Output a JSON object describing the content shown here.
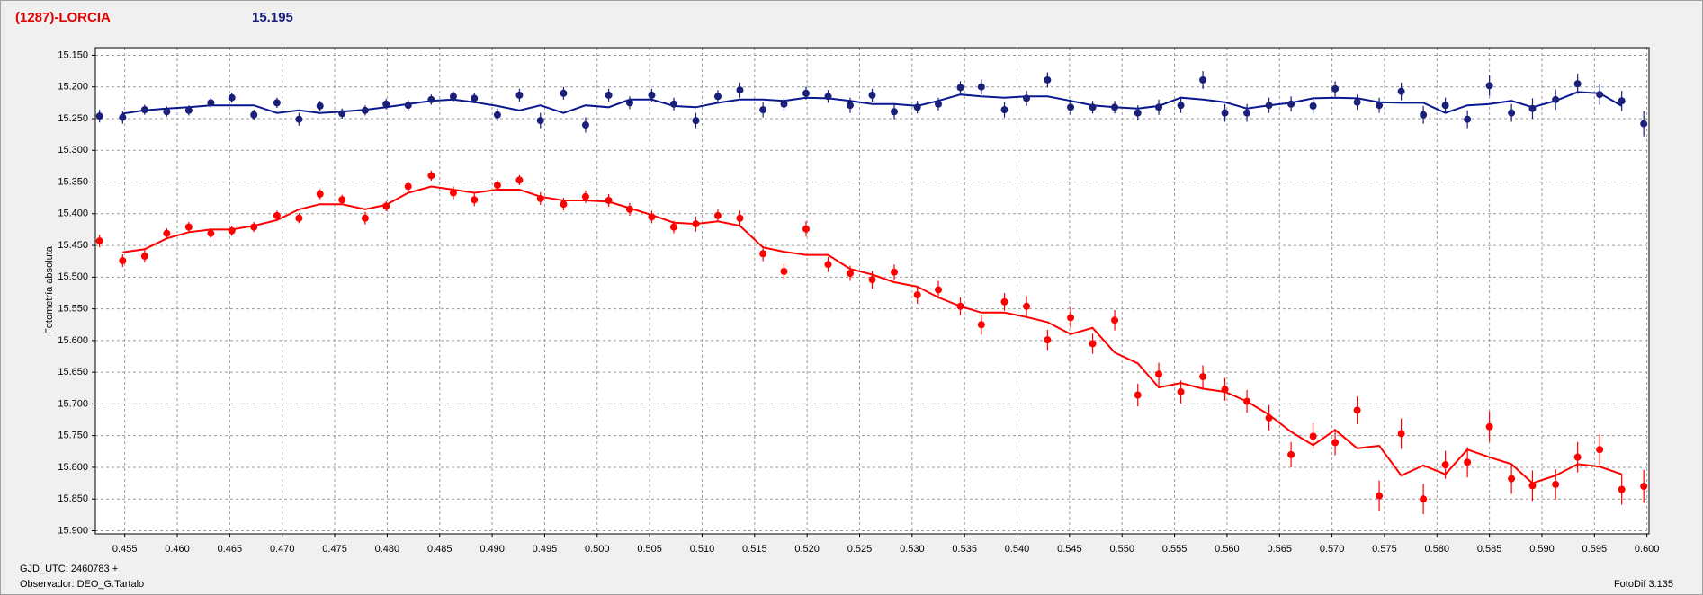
{
  "chart_data": {
    "type": "scatter",
    "title": "(1287)-LORCIA",
    "subtitle": "15.195",
    "y_label": "Fotometría absoluta",
    "footer": [
      "GJD_UTC: 2460783 +",
      "Observador: DEO_G.Tartalo"
    ],
    "software": "FotoDif 3.135",
    "grid": true,
    "xlim": [
      0.4522,
      0.6002
    ],
    "ylim": [
      15.905,
      15.138
    ],
    "xticks": [
      0.455,
      {
        "value": 0.46,
        "label": "0.460"
      },
      0.465,
      {
        "value": 0.47,
        "label": "0.470"
      },
      0.475,
      {
        "value": 0.48,
        "label": "0.480"
      },
      0.485,
      {
        "value": 0.49,
        "label": "0.490"
      },
      0.495,
      {
        "value": 0.5,
        "label": "0.500"
      },
      0.505,
      {
        "value": 0.51,
        "label": "0.510"
      },
      0.515,
      {
        "value": 0.52,
        "label": "0.520"
      },
      0.525,
      {
        "value": 0.53,
        "label": "0.530"
      },
      0.535,
      {
        "value": 0.54,
        "label": "0.540"
      },
      0.545,
      {
        "value": 0.55,
        "label": "0.550"
      },
      0.555,
      {
        "value": 0.56,
        "label": "0.560"
      },
      0.565,
      {
        "value": 0.57,
        "label": "0.570"
      },
      0.575,
      {
        "value": 0.58,
        "label": "0.580"
      },
      0.585,
      {
        "value": 0.59,
        "label": "0.590"
      },
      0.595,
      {
        "value": 0.6,
        "label": "0.600"
      }
    ],
    "yticks": [
      {
        "value": 15.15,
        "label": "15.150"
      },
      {
        "value": 15.2,
        "label": "15.200"
      },
      {
        "value": 15.25,
        "label": "15.250"
      },
      {
        "value": 15.3,
        "label": "15.300"
      },
      {
        "value": 15.35,
        "label": "15.350"
      },
      {
        "value": 15.4,
        "label": "15.400"
      },
      {
        "value": 15.45,
        "label": "15.450"
      },
      {
        "value": 15.5,
        "label": "15.500"
      },
      {
        "value": 15.55,
        "label": "15.550"
      },
      {
        "value": 15.6,
        "label": "15.600"
      },
      {
        "value": 15.65,
        "label": "15.650"
      },
      {
        "value": 15.7,
        "label": "15.700"
      },
      {
        "value": 15.75,
        "label": "15.750"
      },
      {
        "value": 15.8,
        "label": "15.800"
      },
      {
        "value": 15.85,
        "label": "15.850"
      },
      {
        "value": 15.9,
        "label": "15.900"
      }
    ],
    "x": [
      0.4526,
      0.4548,
      0.4569,
      0.459,
      0.4611,
      0.4632,
      0.4652,
      0.4673,
      0.4695,
      0.4716,
      0.4736,
      0.4757,
      0.4779,
      0.4799,
      0.482,
      0.4842,
      0.4863,
      0.4883,
      0.4905,
      0.4926,
      0.4946,
      0.4968,
      0.4989,
      0.5011,
      0.5031,
      0.5052,
      0.5073,
      0.5094,
      0.5115,
      0.5136,
      0.5158,
      0.5178,
      0.5199,
      0.522,
      0.5241,
      0.5262,
      0.5283,
      0.5305,
      0.5325,
      0.5346,
      0.5366,
      0.5388,
      0.5409,
      0.5429,
      0.5451,
      0.5472,
      0.5493,
      0.5515,
      0.5535,
      0.5556,
      0.5577,
      0.5598,
      0.5619,
      0.564,
      0.5661,
      0.5682,
      0.5703,
      0.5724,
      0.5745,
      0.5766,
      0.5787,
      0.5808,
      0.5829,
      0.585,
      0.5871,
      0.5891,
      0.5913,
      0.5934,
      0.5955,
      0.5976,
      0.5997
    ],
    "series": [
      {
        "color": "#1a1f7a",
        "line_color": "#0a1890",
        "values": [
          15.246,
          15.248,
          15.236,
          15.239,
          15.237,
          15.225,
          15.217,
          15.244,
          15.225,
          15.251,
          15.23,
          15.242,
          15.237,
          15.227,
          15.229,
          15.22,
          15.215,
          15.218,
          15.244,
          15.213,
          15.253,
          15.21,
          15.26,
          15.213,
          15.225,
          15.213,
          15.227,
          15.253,
          15.215,
          15.205,
          15.236,
          15.227,
          15.21,
          15.215,
          15.229,
          15.213,
          15.239,
          15.232,
          15.227,
          15.201,
          15.2,
          15.236,
          15.218,
          15.189,
          15.232,
          15.232,
          15.232,
          15.241,
          15.232,
          15.229,
          15.189,
          15.241,
          15.241,
          15.229,
          15.227,
          15.23,
          15.203,
          15.224,
          15.229,
          15.207,
          15.244,
          15.229,
          15.251,
          15.198,
          15.241,
          15.234,
          15.22,
          15.195,
          15.212,
          15.222,
          15.258
        ],
        "errors": [
          0.01,
          0.01,
          0.008,
          0.008,
          0.008,
          0.008,
          0.008,
          0.008,
          0.008,
          0.01,
          0.008,
          0.008,
          0.008,
          0.008,
          0.008,
          0.008,
          0.008,
          0.008,
          0.01,
          0.01,
          0.012,
          0.01,
          0.012,
          0.01,
          0.01,
          0.01,
          0.01,
          0.012,
          0.01,
          0.012,
          0.012,
          0.01,
          0.01,
          0.01,
          0.012,
          0.01,
          0.012,
          0.01,
          0.01,
          0.01,
          0.012,
          0.012,
          0.012,
          0.012,
          0.012,
          0.01,
          0.01,
          0.012,
          0.012,
          0.012,
          0.014,
          0.014,
          0.014,
          0.012,
          0.012,
          0.012,
          0.012,
          0.012,
          0.012,
          0.014,
          0.014,
          0.012,
          0.014,
          0.016,
          0.014,
          0.016,
          0.016,
          0.016,
          0.016,
          0.016,
          0.02
        ],
        "trend": [
          null,
          15.242,
          15.237,
          15.234,
          15.232,
          15.229,
          15.229,
          15.229,
          15.241,
          15.237,
          15.241,
          15.239,
          15.236,
          15.232,
          15.227,
          15.222,
          15.22,
          15.224,
          15.23,
          15.237,
          15.229,
          15.241,
          15.229,
          15.232,
          15.22,
          15.22,
          15.23,
          15.232,
          15.225,
          15.22,
          15.22,
          15.222,
          15.217,
          15.218,
          15.222,
          15.227,
          15.227,
          15.23,
          15.222,
          15.212,
          15.215,
          15.217,
          15.215,
          15.215,
          15.222,
          15.229,
          15.232,
          15.234,
          15.23,
          15.217,
          15.22,
          15.224,
          15.234,
          15.229,
          15.225,
          15.218,
          15.217,
          15.218,
          15.224,
          15.225,
          15.225,
          15.241,
          15.229,
          15.227,
          15.222,
          15.232,
          15.222,
          15.208,
          15.21,
          15.23,
          null
        ]
      },
      {
        "color": "#ff0000",
        "line_color": "#ff0000",
        "values": [
          15.443,
          15.474,
          15.467,
          15.431,
          15.421,
          15.431,
          15.427,
          15.421,
          15.403,
          15.407,
          15.369,
          15.378,
          15.407,
          15.388,
          15.357,
          15.34,
          15.367,
          15.378,
          15.355,
          15.347,
          15.376,
          15.385,
          15.373,
          15.379,
          15.393,
          15.405,
          15.421,
          15.416,
          15.403,
          15.407,
          15.463,
          15.491,
          15.424,
          15.48,
          15.494,
          15.504,
          15.492,
          15.528,
          15.52,
          15.546,
          15.575,
          15.539,
          15.546,
          15.599,
          15.564,
          15.605,
          15.568,
          15.686,
          15.653,
          15.681,
          15.657,
          15.677,
          15.696,
          15.722,
          15.78,
          15.751,
          15.761,
          15.71,
          15.845,
          15.747,
          15.85,
          15.796,
          15.792,
          15.736,
          15.818,
          15.829,
          15.827,
          15.784,
          15.772,
          15.835,
          15.83
        ],
        "errors": [
          0.01,
          0.01,
          0.01,
          0.008,
          0.008,
          0.008,
          0.008,
          0.008,
          0.008,
          0.008,
          0.008,
          0.008,
          0.01,
          0.008,
          0.008,
          0.008,
          0.01,
          0.01,
          0.008,
          0.008,
          0.01,
          0.01,
          0.01,
          0.01,
          0.01,
          0.01,
          0.01,
          0.012,
          0.01,
          0.012,
          0.012,
          0.012,
          0.012,
          0.012,
          0.012,
          0.014,
          0.012,
          0.014,
          0.014,
          0.014,
          0.016,
          0.014,
          0.016,
          0.016,
          0.016,
          0.016,
          0.016,
          0.018,
          0.018,
          0.018,
          0.018,
          0.018,
          0.018,
          0.02,
          0.02,
          0.02,
          0.02,
          0.022,
          0.024,
          0.024,
          0.024,
          0.022,
          0.024,
          0.024,
          0.024,
          0.024,
          0.024,
          0.024,
          0.024,
          0.024,
          0.026
        ],
        "trend": [
          null,
          15.461,
          15.456,
          15.439,
          15.429,
          15.425,
          15.425,
          15.419,
          15.41,
          15.393,
          15.385,
          15.385,
          15.393,
          15.386,
          15.367,
          15.357,
          15.362,
          15.367,
          15.362,
          15.362,
          15.373,
          15.379,
          15.379,
          15.381,
          15.391,
          15.402,
          15.414,
          15.416,
          15.412,
          15.419,
          15.453,
          15.46,
          15.465,
          15.465,
          15.487,
          15.496,
          15.508,
          15.515,
          15.532,
          15.546,
          15.556,
          15.556,
          15.563,
          15.571,
          15.59,
          15.58,
          15.619,
          15.636,
          15.674,
          15.667,
          15.676,
          15.681,
          15.696,
          15.717,
          15.744,
          15.765,
          15.741,
          15.77,
          15.766,
          15.813,
          15.797,
          15.811,
          15.772,
          15.784,
          15.795,
          15.825,
          15.813,
          15.795,
          15.799,
          15.811,
          null
        ]
      }
    ]
  }
}
